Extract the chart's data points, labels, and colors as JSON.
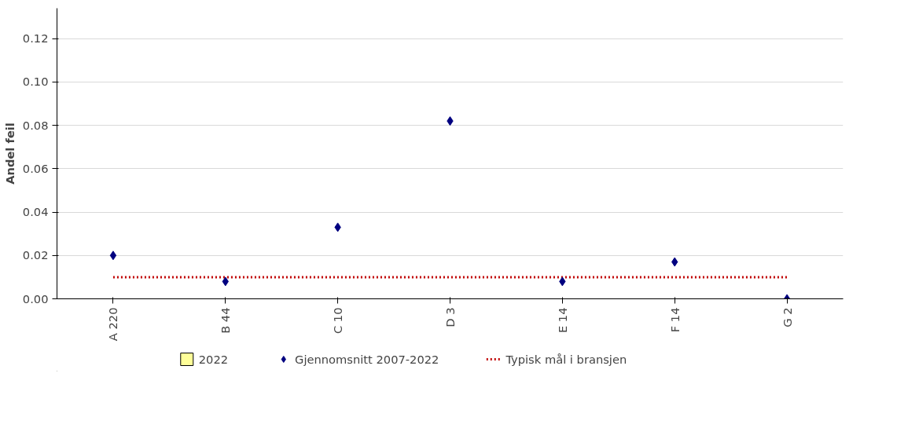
{
  "chart_data": {
    "type": "scatter",
    "ylabel": "Andel feil",
    "categories": [
      "A 220",
      "B 44",
      "C 10",
      "D 3",
      "E 14",
      "F 14",
      "G 2"
    ],
    "series": [
      {
        "name": "2022",
        "type": "bar",
        "color": "#ffff99",
        "values": [
          null,
          null,
          null,
          null,
          null,
          null,
          null
        ]
      },
      {
        "name": "Gjennomsnitt 2007-2022",
        "marker": "diamond",
        "color": "#000080",
        "values": [
          0.02,
          0.008,
          0.033,
          0.082,
          0.008,
          0.017,
          0.0
        ]
      },
      {
        "name": "Typisk mål i bransjen",
        "type": "line",
        "line_style": "dotted",
        "color": "#c00000",
        "values": [
          0.01,
          0.01,
          0.01,
          0.01,
          0.01,
          0.01,
          0.01
        ]
      }
    ],
    "ylim": [
      0,
      0.134
    ],
    "yticks": [
      {
        "value": 0,
        "label": "0.00"
      },
      {
        "value": 0.02,
        "label": "0.02"
      },
      {
        "value": 0.04,
        "label": "0.04"
      },
      {
        "value": 0.06,
        "label": "0.06"
      },
      {
        "value": 0.08,
        "label": "0.08"
      },
      {
        "value": 0.1,
        "label": "0.10"
      },
      {
        "value": 0.12,
        "label": "0.12"
      }
    ],
    "grid": "y",
    "legend": "bottom"
  }
}
